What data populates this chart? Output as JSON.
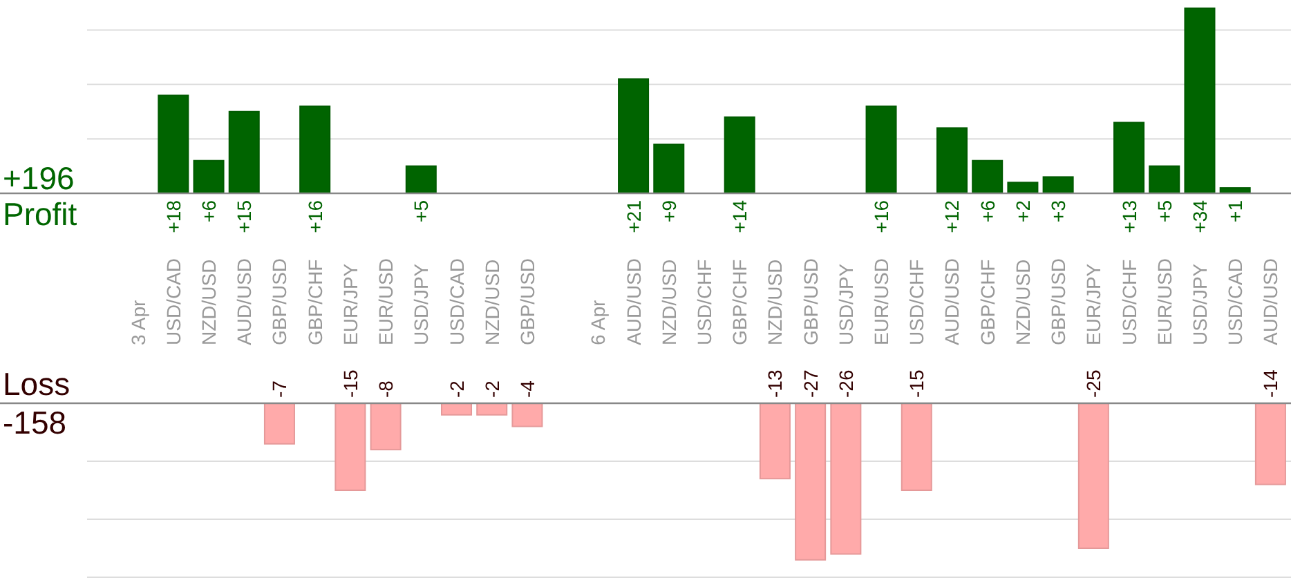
{
  "chart_data": [
    {
      "type": "bar",
      "ylabel": "Profit",
      "annotations": [
        "+196"
      ],
      "categories": [
        "3 Apr",
        "USD/CAD",
        "NZD/USD",
        "AUD/USD",
        "GBP/USD",
        "GBP/CHF",
        "EUR/JPY",
        "EUR/USD",
        "USD/JPY",
        "USD/CAD",
        "NZD/USD",
        "GBP/USD",
        null,
        "6 Apr",
        "AUD/USD",
        "NZD/USD",
        "USD/CHF",
        "GBP/CHF",
        "NZD/USD",
        "GBP/USD",
        "USD/JPY",
        "EUR/USD",
        "USD/CHF",
        "AUD/USD",
        "GBP/CHF",
        "NZD/USD",
        "GBP/USD",
        "EUR/JPY",
        "USD/CHF",
        "EUR/USD",
        "USD/JPY",
        "USD/CAD",
        "AUD/USD"
      ],
      "series": [
        {
          "color": "#006400",
          "values": [
            null,
            18,
            6,
            15,
            null,
            16,
            null,
            null,
            5,
            null,
            null,
            null,
            null,
            null,
            21,
            9,
            null,
            14,
            null,
            null,
            null,
            16,
            null,
            12,
            6,
            2,
            3,
            null,
            13,
            5,
            34,
            1,
            null
          ],
          "value_labels": [
            null,
            "+18",
            "+6",
            "+15",
            null,
            "+16",
            null,
            null,
            "+5",
            null,
            null,
            null,
            null,
            null,
            "+21",
            "+9",
            null,
            "+14",
            null,
            null,
            null,
            "+16",
            null,
            "+12",
            "+6",
            "+2",
            "+3",
            null,
            "+13",
            "+5",
            "+34",
            "+1",
            null
          ]
        }
      ],
      "ylim": [
        0,
        35
      ],
      "yticks": [
        {
          "value": 10,
          "label": null
        },
        {
          "value": 20,
          "label": null
        },
        {
          "value": 30,
          "label": null
        }
      ],
      "grid": "y"
    },
    {
      "type": "bar",
      "ylabel": "Loss",
      "annotations": [
        "-158"
      ],
      "categories": [
        null,
        null,
        null,
        null,
        null,
        null,
        null,
        null,
        null,
        null,
        null,
        null,
        null,
        null,
        null,
        null,
        null,
        null,
        null,
        null,
        null,
        null,
        null,
        null,
        null,
        null,
        null,
        null,
        null,
        null,
        null,
        null,
        null
      ],
      "series": [
        {
          "color": "#ffaaaa",
          "values": [
            null,
            null,
            null,
            null,
            -7,
            null,
            -15,
            -8,
            null,
            -2,
            -2,
            -4,
            null,
            null,
            null,
            null,
            null,
            null,
            -13,
            -27,
            -26,
            null,
            -15,
            null,
            null,
            null,
            null,
            -25,
            null,
            null,
            null,
            null,
            -14
          ],
          "value_labels": [
            null,
            null,
            null,
            null,
            "-7",
            null,
            "-15",
            "-8",
            null,
            "-2",
            "-2",
            "-4",
            null,
            null,
            null,
            null,
            null,
            null,
            "-13",
            "-27",
            "-26",
            null,
            "-15",
            null,
            null,
            null,
            null,
            "-25",
            null,
            null,
            null,
            null,
            "-14"
          ]
        }
      ],
      "ylim": [
        -30,
        0
      ],
      "yticks": [
        {
          "value": -10,
          "label": null
        },
        {
          "value": -20,
          "label": null
        },
        {
          "value": -30,
          "label": null
        }
      ],
      "grid": "y"
    }
  ]
}
